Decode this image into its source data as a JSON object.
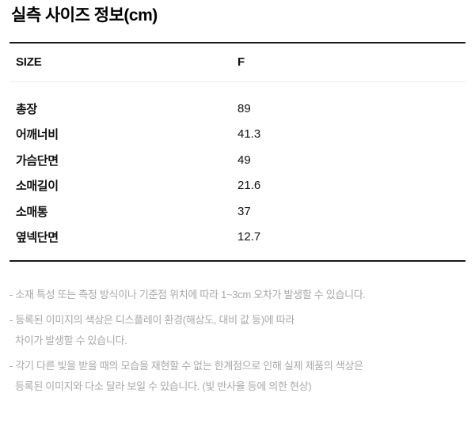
{
  "page": {
    "title": "실측 사이즈 정보(cm)"
  },
  "table": {
    "headers": {
      "size": "SIZE",
      "variant": "F"
    },
    "rows": [
      {
        "label": "총장",
        "value": "89"
      },
      {
        "label": "어깨너비",
        "value": "41.3"
      },
      {
        "label": "가슴단면",
        "value": "49"
      },
      {
        "label": "소매길이",
        "value": "21.6"
      },
      {
        "label": "소매통",
        "value": "37"
      },
      {
        "label": "옆넥단면",
        "value": "12.7"
      }
    ]
  },
  "footnotes": [
    {
      "lines": [
        "- 소재 특성 또는 측정 방식이나 기준점 위치에 따라 1~3cm 오차가 발생할 수 있습니다."
      ]
    },
    {
      "lines": [
        "- 등록된 이미지의 색상은 디스플레이 환경(해상도, 대비 값 등)에 따라",
        "차이가 발생할 수 있습니다."
      ]
    },
    {
      "lines": [
        "- 각기 다른 빛을 받을 때의 모습을 재현할 수 없는 한계점으로 인해 실제 제품의 색상은",
        "등록된 이미지와 다소 달라 보일 수 있습니다. (빛 반사율 등에 의한 현상)"
      ]
    }
  ],
  "colors": {
    "text_primary": "#111111",
    "text_footnote": "#a8a8a8",
    "table_border": "#191919",
    "header_divider": "#ebebeb",
    "background": "#ffffff"
  }
}
